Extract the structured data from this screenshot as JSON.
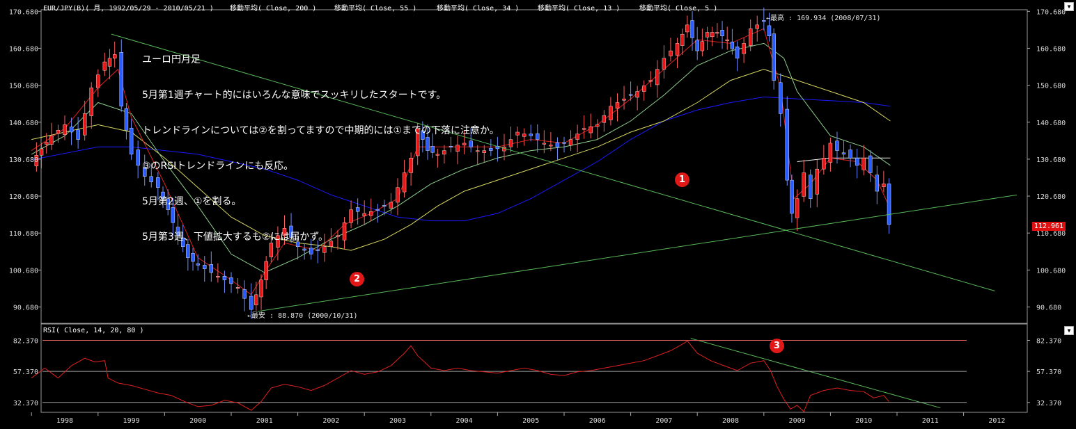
{
  "header": {
    "symbol_line": "EUR/JPY(B)( 月, 1992/05/29 - 2010/05/21 )",
    "ma_labels": [
      "移動平均( Close, 200 )",
      "移動平均( Close, 55 )",
      "移動平均( Close, 34 )",
      "移動平均( Close, 13 )",
      "移動平均( Close, 5 )"
    ]
  },
  "rsi_header": "RSI( Close, 14, 20, 80 )",
  "annotation_lines": [
    "ユーロ円月足",
    "5月第1週チャート的にはいろんな意味でスッキリしたスタートです。",
    "トレンドラインについては②を割ってますので中期的には①までの下落に注意か。",
    "③のRSIトレンドラインにも反応。",
    "5月第2週、①を割る。",
    "5月第3週、下値拡大するも②には届かず。"
  ],
  "high_label": "←最高 : 169.934 (2008/07/31)",
  "low_label": "←最安 : 88.870 (2000/10/31)",
  "current_price": "112.961",
  "markers": [
    "1",
    "2",
    "3"
  ],
  "dropdown_icon": "▼",
  "chart_data": [
    {
      "type": "candlestick",
      "title": "EUR/JPY(B)( 月, 1992/05/29 - 2010/05/21 )",
      "ylim": [
        85,
        173
      ],
      "yticks": [
        90.68,
        100.68,
        110.68,
        120.68,
        130.68,
        140.68,
        150.68,
        160.68,
        170.68
      ],
      "xticks": [
        "1998",
        "1999",
        "2000",
        "2001",
        "2002",
        "2003",
        "2004",
        "2005",
        "2006",
        "2007",
        "2008",
        "2009",
        "2010",
        "2011",
        "2012"
      ],
      "x_start_year": 1997.5,
      "close_points": [
        [
          1997.5,
          130
        ],
        [
          1997.8,
          137
        ],
        [
          1998.0,
          140
        ],
        [
          1998.2,
          136
        ],
        [
          1998.4,
          150
        ],
        [
          1998.6,
          157
        ],
        [
          1998.75,
          159
        ],
        [
          1998.85,
          145
        ],
        [
          1999.0,
          132
        ],
        [
          1999.2,
          126
        ],
        [
          1999.4,
          123
        ],
        [
          1999.55,
          117
        ],
        [
          1999.7,
          110
        ],
        [
          1999.85,
          104
        ],
        [
          2000.0,
          102
        ],
        [
          2000.2,
          100
        ],
        [
          2000.4,
          98
        ],
        [
          2000.6,
          96
        ],
        [
          2000.8,
          90
        ],
        [
          2000.95,
          98
        ],
        [
          2001.1,
          108
        ],
        [
          2001.3,
          112
        ],
        [
          2001.5,
          107
        ],
        [
          2001.7,
          105
        ],
        [
          2001.9,
          107
        ],
        [
          2002.1,
          110
        ],
        [
          2002.3,
          117
        ],
        [
          2002.5,
          116
        ],
        [
          2002.7,
          117
        ],
        [
          2002.9,
          119
        ],
        [
          2003.0,
          123
        ],
        [
          2003.2,
          131
        ],
        [
          2003.3,
          139
        ],
        [
          2003.45,
          133
        ],
        [
          2003.6,
          132
        ],
        [
          2003.8,
          134
        ],
        [
          2004.0,
          135
        ],
        [
          2004.2,
          133
        ],
        [
          2004.4,
          133
        ],
        [
          2004.6,
          134
        ],
        [
          2004.8,
          138
        ],
        [
          2005.0,
          137
        ],
        [
          2005.2,
          135
        ],
        [
          2005.4,
          134
        ],
        [
          2005.6,
          136
        ],
        [
          2005.8,
          139
        ],
        [
          2006.0,
          140
        ],
        [
          2006.2,
          145
        ],
        [
          2006.4,
          147
        ],
        [
          2006.6,
          149
        ],
        [
          2006.8,
          152
        ],
        [
          2007.0,
          158
        ],
        [
          2007.2,
          162
        ],
        [
          2007.35,
          167
        ],
        [
          2007.5,
          160
        ],
        [
          2007.65,
          165
        ],
        [
          2007.8,
          165
        ],
        [
          2007.95,
          163
        ],
        [
          2008.1,
          158
        ],
        [
          2008.3,
          166
        ],
        [
          2008.5,
          168
        ],
        [
          2008.58,
          164
        ],
        [
          2008.65,
          152
        ],
        [
          2008.75,
          143
        ],
        [
          2008.85,
          125
        ],
        [
          2008.92,
          116
        ],
        [
          2009.0,
          120
        ],
        [
          2009.1,
          127
        ],
        [
          2009.2,
          120
        ],
        [
          2009.3,
          128
        ],
        [
          2009.4,
          131
        ],
        [
          2009.5,
          135
        ],
        [
          2009.6,
          133
        ],
        [
          2009.7,
          132
        ],
        [
          2009.8,
          131
        ],
        [
          2009.9,
          129
        ],
        [
          2010.0,
          131
        ],
        [
          2010.1,
          127
        ],
        [
          2010.2,
          122
        ],
        [
          2010.3,
          124
        ],
        [
          2010.38,
          113
        ]
      ],
      "moving_averages": [
        {
          "name": "移動平均( Close, 200 )",
          "color": "#1a1aff",
          "points": [
            [
              1997.5,
              130.5
            ],
            [
              1998.5,
              134
            ],
            [
              1999.0,
              134
            ],
            [
              1999.5,
              133
            ],
            [
              2000.0,
              132
            ],
            [
              2000.5,
              130
            ],
            [
              2001.0,
              128
            ],
            [
              2001.5,
              125
            ],
            [
              2002.0,
              121
            ],
            [
              2002.5,
              118
            ],
            [
              2003.0,
              115
            ],
            [
              2003.5,
              114
            ],
            [
              2004.0,
              114
            ],
            [
              2004.5,
              116
            ],
            [
              2005.0,
              120
            ],
            [
              2005.5,
              125
            ],
            [
              2006.0,
              130
            ],
            [
              2006.5,
              136
            ],
            [
              2007.0,
              141
            ],
            [
              2007.5,
              144
            ],
            [
              2008.0,
              146
            ],
            [
              2008.5,
              147.5
            ],
            [
              2009.0,
              147
            ],
            [
              2009.5,
              146.5
            ],
            [
              2010.0,
              146
            ],
            [
              2010.4,
              145
            ]
          ]
        },
        {
          "name": "移動平均( Close, 55 )",
          "color": "#d8d860",
          "points": [
            [
              1997.5,
              136
            ],
            [
              1998.0,
              138
            ],
            [
              1998.5,
              140
            ],
            [
              1999.0,
              138
            ],
            [
              1999.5,
              131
            ],
            [
              2000.0,
              123
            ],
            [
              2000.5,
              115
            ],
            [
              2001.0,
              110
            ],
            [
              2001.5,
              108
            ],
            [
              2002.0,
              107
            ],
            [
              2002.3,
              106
            ],
            [
              2002.8,
              109
            ],
            [
              2003.2,
              113
            ],
            [
              2003.6,
              118
            ],
            [
              2004.0,
              122
            ],
            [
              2004.5,
              125
            ],
            [
              2005.0,
              128
            ],
            [
              2005.5,
              131
            ],
            [
              2006.0,
              134
            ],
            [
              2006.5,
              138
            ],
            [
              2007.0,
              141
            ],
            [
              2007.5,
              146
            ],
            [
              2008.0,
              152
            ],
            [
              2008.5,
              155
            ],
            [
              2009.0,
              152
            ],
            [
              2009.5,
              149
            ],
            [
              2010.0,
              146
            ],
            [
              2010.4,
              141
            ]
          ]
        },
        {
          "name": "移動平均( Close, 34 )",
          "color": "#8fd08f",
          "points": [
            [
              1997.5,
              132
            ],
            [
              1998.0,
              137
            ],
            [
              1998.5,
              146
            ],
            [
              1999.0,
              143
            ],
            [
              1999.5,
              130
            ],
            [
              2000.0,
              118
            ],
            [
              2000.5,
              105
            ],
            [
              2001.0,
              100
            ],
            [
              2001.5,
              104
            ],
            [
              2002.0,
              109
            ],
            [
              2002.5,
              113
            ],
            [
              2003.0,
              118
            ],
            [
              2003.5,
              124
            ],
            [
              2004.0,
              128
            ],
            [
              2004.5,
              131
            ],
            [
              2005.0,
              133
            ],
            [
              2005.5,
              134
            ],
            [
              2006.0,
              136
            ],
            [
              2006.5,
              141
            ],
            [
              2007.0,
              148
            ],
            [
              2007.5,
              156
            ],
            [
              2008.0,
              160
            ],
            [
              2008.5,
              162
            ],
            [
              2008.8,
              158
            ],
            [
              2009.0,
              149
            ],
            [
              2009.5,
              137
            ],
            [
              2010.0,
              134
            ],
            [
              2010.4,
              129
            ]
          ]
        },
        {
          "name": "移動平均( Close, 13 )",
          "color": "#f0f0f0",
          "points": [
            [
              2009.0,
              130
            ],
            [
              2009.5,
              131
            ],
            [
              2010.0,
              131
            ],
            [
              2010.4,
              131
            ]
          ]
        },
        {
          "name": "移動平均( Close, 5 )",
          "color": "#e02020",
          "points": [
            [
              1997.5,
              133
            ],
            [
              1998.0,
              139
            ],
            [
              1998.5,
              150
            ],
            [
              1998.8,
              155
            ],
            [
              1999.0,
              142
            ],
            [
              1999.5,
              124
            ],
            [
              2000.0,
              104
            ],
            [
              2000.5,
              98
            ],
            [
              2000.8,
              94
            ],
            [
              2001.0,
              100
            ],
            [
              2001.3,
              108
            ],
            [
              2001.8,
              106
            ],
            [
              2002.2,
              113
            ],
            [
              2002.6,
              116
            ],
            [
              2003.0,
              120
            ],
            [
              2003.3,
              134
            ],
            [
              2003.6,
              134
            ],
            [
              2004.0,
              134
            ],
            [
              2004.5,
              134
            ],
            [
              2005.0,
              136
            ],
            [
              2005.5,
              135
            ],
            [
              2006.0,
              140
            ],
            [
              2006.5,
              147
            ],
            [
              2007.0,
              155
            ],
            [
              2007.5,
              163
            ],
            [
              2008.0,
              162
            ],
            [
              2008.5,
              166
            ],
            [
              2008.75,
              150
            ],
            [
              2008.95,
              120
            ],
            [
              2009.2,
              124
            ],
            [
              2009.5,
              131
            ],
            [
              2009.9,
              130
            ],
            [
              2010.2,
              125
            ],
            [
              2010.38,
              118
            ]
          ]
        }
      ],
      "trendlines": [
        {
          "name": "1",
          "color": "#58b858",
          "from": [
            1998.7,
            164.5
          ],
          "to": [
            2011.97,
            95
          ]
        },
        {
          "name": "2",
          "color": "#58b858",
          "from": [
            2000.9,
            89.5
          ],
          "to": [
            2012.3,
            121
          ]
        }
      ]
    },
    {
      "type": "line",
      "title": "RSI( Close, 14, 20, 80 )",
      "ylim": [
        23,
        88
      ],
      "yticks": [
        32.37,
        57.37,
        82.37
      ],
      "reference_lines": [
        82.37,
        57.37,
        32.37
      ],
      "points": [
        [
          1997.5,
          52
        ],
        [
          1997.7,
          60
        ],
        [
          1997.9,
          52
        ],
        [
          1998.1,
          62
        ],
        [
          1998.3,
          68
        ],
        [
          1998.45,
          65
        ],
        [
          1998.6,
          66
        ],
        [
          1998.65,
          52
        ],
        [
          1998.8,
          48
        ],
        [
          1999.0,
          46
        ],
        [
          1999.2,
          43
        ],
        [
          1999.4,
          40
        ],
        [
          1999.6,
          38
        ],
        [
          1999.8,
          33
        ],
        [
          2000.0,
          29
        ],
        [
          2000.2,
          30
        ],
        [
          2000.4,
          34
        ],
        [
          2000.6,
          32
        ],
        [
          2000.8,
          26
        ],
        [
          2000.95,
          33
        ],
        [
          2001.1,
          44
        ],
        [
          2001.3,
          47
        ],
        [
          2001.5,
          45
        ],
        [
          2001.7,
          42
        ],
        [
          2001.9,
          46
        ],
        [
          2002.1,
          52
        ],
        [
          2002.3,
          58
        ],
        [
          2002.5,
          55
        ],
        [
          2002.7,
          57
        ],
        [
          2002.9,
          62
        ],
        [
          2003.1,
          72
        ],
        [
          2003.2,
          78
        ],
        [
          2003.3,
          70
        ],
        [
          2003.5,
          60
        ],
        [
          2003.7,
          58
        ],
        [
          2003.9,
          60
        ],
        [
          2004.1,
          58
        ],
        [
          2004.3,
          57
        ],
        [
          2004.5,
          56
        ],
        [
          2004.7,
          58
        ],
        [
          2004.9,
          60
        ],
        [
          2005.1,
          58
        ],
        [
          2005.3,
          55
        ],
        [
          2005.5,
          54
        ],
        [
          2005.7,
          57
        ],
        [
          2005.9,
          58
        ],
        [
          2006.1,
          60
        ],
        [
          2006.3,
          62
        ],
        [
          2006.5,
          64
        ],
        [
          2006.7,
          66
        ],
        [
          2006.9,
          70
        ],
        [
          2007.1,
          74
        ],
        [
          2007.3,
          80
        ],
        [
          2007.35,
          82
        ],
        [
          2007.5,
          72
        ],
        [
          2007.7,
          66
        ],
        [
          2007.9,
          62
        ],
        [
          2008.1,
          58
        ],
        [
          2008.3,
          64
        ],
        [
          2008.5,
          66
        ],
        [
          2008.6,
          58
        ],
        [
          2008.7,
          45
        ],
        [
          2008.8,
          35
        ],
        [
          2008.9,
          27
        ],
        [
          2009.0,
          30
        ],
        [
          2009.1,
          25
        ],
        [
          2009.2,
          38
        ],
        [
          2009.4,
          42
        ],
        [
          2009.6,
          44
        ],
        [
          2009.8,
          42
        ],
        [
          2010.0,
          41
        ],
        [
          2010.15,
          36
        ],
        [
          2010.3,
          38
        ],
        [
          2010.38,
          33
        ]
      ],
      "trendlines": [
        {
          "name": "3",
          "color": "#58b858",
          "from": [
            2007.4,
            84
          ],
          "to": [
            2011.15,
            28
          ]
        }
      ]
    }
  ]
}
